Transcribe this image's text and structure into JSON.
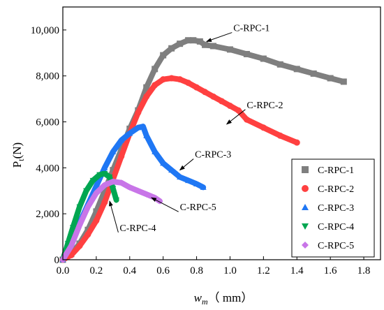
{
  "chart_data": {
    "type": "scatter",
    "xlabel_var": "w",
    "xlabel_sub": "m",
    "xlabel_unit": "（ mm）",
    "ylabel_var": "P",
    "ylabel_sub": "t",
    "ylabel_unit": "(N)",
    "xlim": [
      0,
      1.9
    ],
    "ylim": [
      0,
      11000
    ],
    "x_ticks": [
      "0.0",
      "0.2",
      "0.4",
      "0.6",
      "0.8",
      "1.0",
      "1.2",
      "1.4",
      "1.6",
      "1.8"
    ],
    "y_ticks": [
      "0",
      "2,000",
      "4,000",
      "6,000",
      "8,000",
      "10,000"
    ],
    "legend_position": "bottom-right",
    "series": [
      {
        "name": "C-RPC-1",
        "color": "#7f7f7f",
        "marker": "square",
        "x": [
          0.0,
          0.05,
          0.1,
          0.15,
          0.2,
          0.25,
          0.3,
          0.35,
          0.4,
          0.45,
          0.5,
          0.55,
          0.6,
          0.65,
          0.7,
          0.75,
          0.78,
          0.82,
          0.85,
          0.9,
          1.0,
          1.1,
          1.2,
          1.3,
          1.4,
          1.5,
          1.6,
          1.68
        ],
        "y": [
          0,
          250,
          700,
          1300,
          2100,
          3000,
          3900,
          4800,
          5700,
          6500,
          7500,
          8300,
          8900,
          9200,
          9400,
          9550,
          9550,
          9500,
          9350,
          9300,
          9150,
          8950,
          8750,
          8500,
          8300,
          8100,
          7900,
          7750
        ]
      },
      {
        "name": "C-RPC-2",
        "color": "#ff4040",
        "marker": "circle",
        "x": [
          0.0,
          0.05,
          0.1,
          0.15,
          0.2,
          0.25,
          0.3,
          0.35,
          0.4,
          0.45,
          0.5,
          0.55,
          0.6,
          0.65,
          0.7,
          0.75,
          0.8,
          0.85,
          0.9,
          0.95,
          1.0,
          1.05,
          1.1,
          1.2,
          1.3,
          1.4
        ],
        "y": [
          0,
          200,
          600,
          1100,
          1700,
          2500,
          3500,
          4500,
          5500,
          6400,
          7100,
          7600,
          7850,
          7900,
          7850,
          7700,
          7500,
          7300,
          7100,
          6900,
          6700,
          6500,
          6100,
          5750,
          5400,
          5100
        ]
      },
      {
        "name": "C-RPC-3",
        "color": "#1f77f4",
        "marker": "triangle",
        "x": [
          0.0,
          0.05,
          0.1,
          0.15,
          0.2,
          0.25,
          0.3,
          0.35,
          0.4,
          0.45,
          0.48,
          0.5,
          0.55,
          0.6,
          0.65,
          0.7,
          0.75,
          0.8,
          0.84
        ],
        "y": [
          0,
          700,
          1600,
          2400,
          3200,
          4000,
          4700,
          5200,
          5500,
          5750,
          5800,
          5400,
          4700,
          4200,
          3900,
          3600,
          3450,
          3300,
          3150
        ]
      },
      {
        "name": "C-RPC-4",
        "color": "#00a651",
        "marker": "triangle-down",
        "x": [
          0.0,
          0.03,
          0.06,
          0.1,
          0.14,
          0.18,
          0.22,
          0.25,
          0.28,
          0.3,
          0.32
        ],
        "y": [
          0,
          700,
          1400,
          2300,
          3000,
          3450,
          3700,
          3750,
          3600,
          3100,
          2600
        ]
      },
      {
        "name": "C-RPC-5",
        "color": "#c875e8",
        "marker": "diamond",
        "x": [
          0.0,
          0.05,
          0.1,
          0.15,
          0.2,
          0.25,
          0.3,
          0.35,
          0.4,
          0.45,
          0.5,
          0.55,
          0.58
        ],
        "y": [
          0,
          600,
          1500,
          2300,
          2900,
          3250,
          3400,
          3350,
          3150,
          3000,
          2850,
          2700,
          2550
        ]
      }
    ],
    "annotations": [
      {
        "text": "C-RPC-1",
        "x": 1.02,
        "y": 9950,
        "arrow_to": [
          0.86,
          9500
        ]
      },
      {
        "text": "C-RPC-2",
        "x": 1.1,
        "y": 6600,
        "arrow_to": [
          0.98,
          5900
        ]
      },
      {
        "text": "C-RPC-3",
        "x": 0.79,
        "y": 4450,
        "arrow_to": [
          0.7,
          3900
        ]
      },
      {
        "text": "C-RPC-4",
        "x": 0.34,
        "y": 1250,
        "arrow_to": [
          0.28,
          2550
        ]
      },
      {
        "text": "C-RPC-5",
        "x": 0.7,
        "y": 2150,
        "arrow_to": [
          0.53,
          2700
        ]
      }
    ]
  }
}
